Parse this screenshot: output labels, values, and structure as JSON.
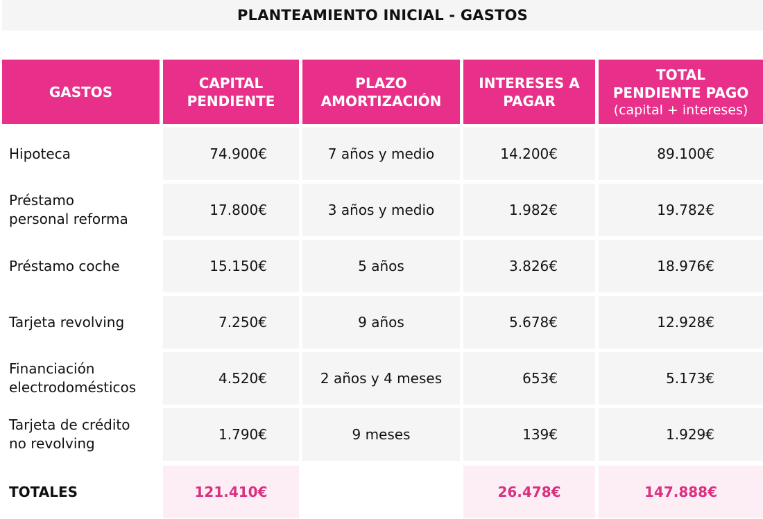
{
  "title": "PLANTEAMIENTO INICIAL - GASTOS",
  "colors": {
    "accent": "#e8308a",
    "total_text": "#d9307f",
    "total_bg": "#fdeef6",
    "cell_bg": "#f4f5f4"
  },
  "headers": {
    "gastos": "GASTOS",
    "capital_1": "CAPITAL",
    "capital_2": "PENDIENTE",
    "plazo_1": "PLAZO",
    "plazo_2": "AMORTIZACIÓN",
    "intereses_1": "INTERESES A",
    "intereses_2": "PAGAR",
    "total_1": "TOTAL",
    "total_2": "PENDIENTE PAGO",
    "total_sub": "(capital + intereses)"
  },
  "rows": [
    {
      "l1": "Hipoteca",
      "l2": "",
      "capital": "74.900€",
      "plazo": "7 años y medio",
      "intereses": "14.200€",
      "total": "89.100€"
    },
    {
      "l1": "Préstamo",
      "l2": "personal reforma",
      "capital": "17.800€",
      "plazo": "3 años y medio",
      "intereses": "1.982€",
      "total": "19.782€"
    },
    {
      "l1": "Préstamo coche",
      "l2": "",
      "capital": "15.150€",
      "plazo": "5 años",
      "intereses": "3.826€",
      "total": "18.976€"
    },
    {
      "l1": "Tarjeta revolving",
      "l2": "",
      "capital": "7.250€",
      "plazo": "9 años",
      "intereses": "5.678€",
      "total": "12.928€"
    },
    {
      "l1": "Financiación",
      "l2": "electrodomésticos",
      "capital": "4.520€",
      "plazo": "2 años y 4 meses",
      "intereses": "653€",
      "total": "5.173€"
    },
    {
      "l1": "Tarjeta de crédito",
      "l2": "no revolving",
      "capital": "1.790€",
      "plazo": "9 meses",
      "intereses": "139€",
      "total": "1.929€"
    }
  ],
  "totals": {
    "label": "TOTALES",
    "capital": "121.410€",
    "intereses": "26.478€",
    "total": "147.888€"
  }
}
